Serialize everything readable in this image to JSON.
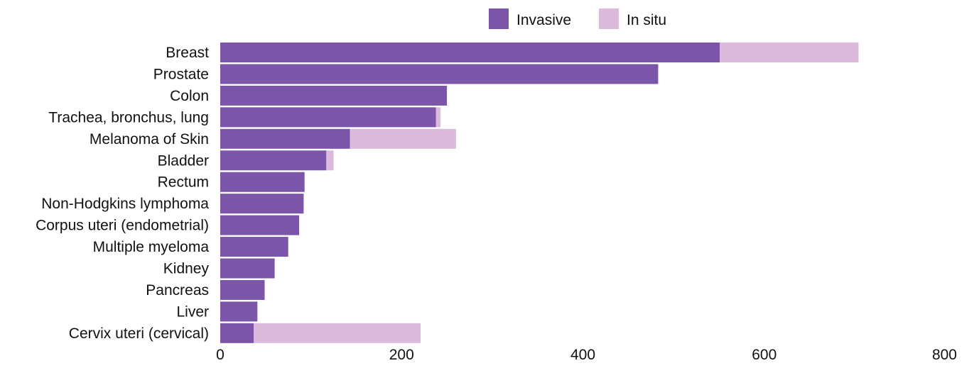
{
  "chart_data": {
    "type": "bar",
    "orientation": "horizontal",
    "stacked": true,
    "categories": [
      "Breast",
      "Prostate",
      "Colon",
      "Trachea, bronchus, lung",
      "Melanoma of Skin",
      "Bladder",
      "Rectum",
      "Non-Hodgkins lymphoma",
      "Corpus uteri (endometrial)",
      "Multiple myeloma",
      "Kidney",
      "Pancreas",
      "Liver",
      "Cervix uteri (cervical)"
    ],
    "series": [
      {
        "name": "Invasive",
        "color": "#7b55a8",
        "values": [
          551,
          483,
          250,
          238,
          143,
          117,
          93,
          92,
          87,
          75,
          60,
          49,
          41,
          37
        ]
      },
      {
        "name": "In situ",
        "color": "#dcbadb",
        "values": [
          153,
          0,
          0,
          5,
          117,
          8,
          0,
          0,
          0,
          0,
          0,
          0,
          0,
          184
        ]
      }
    ],
    "xlim": [
      0,
      800
    ],
    "xticks": [
      0,
      200,
      400,
      600,
      800
    ],
    "legend_position": "top-right",
    "grid": false,
    "title": "",
    "xlabel": "",
    "ylabel": ""
  }
}
